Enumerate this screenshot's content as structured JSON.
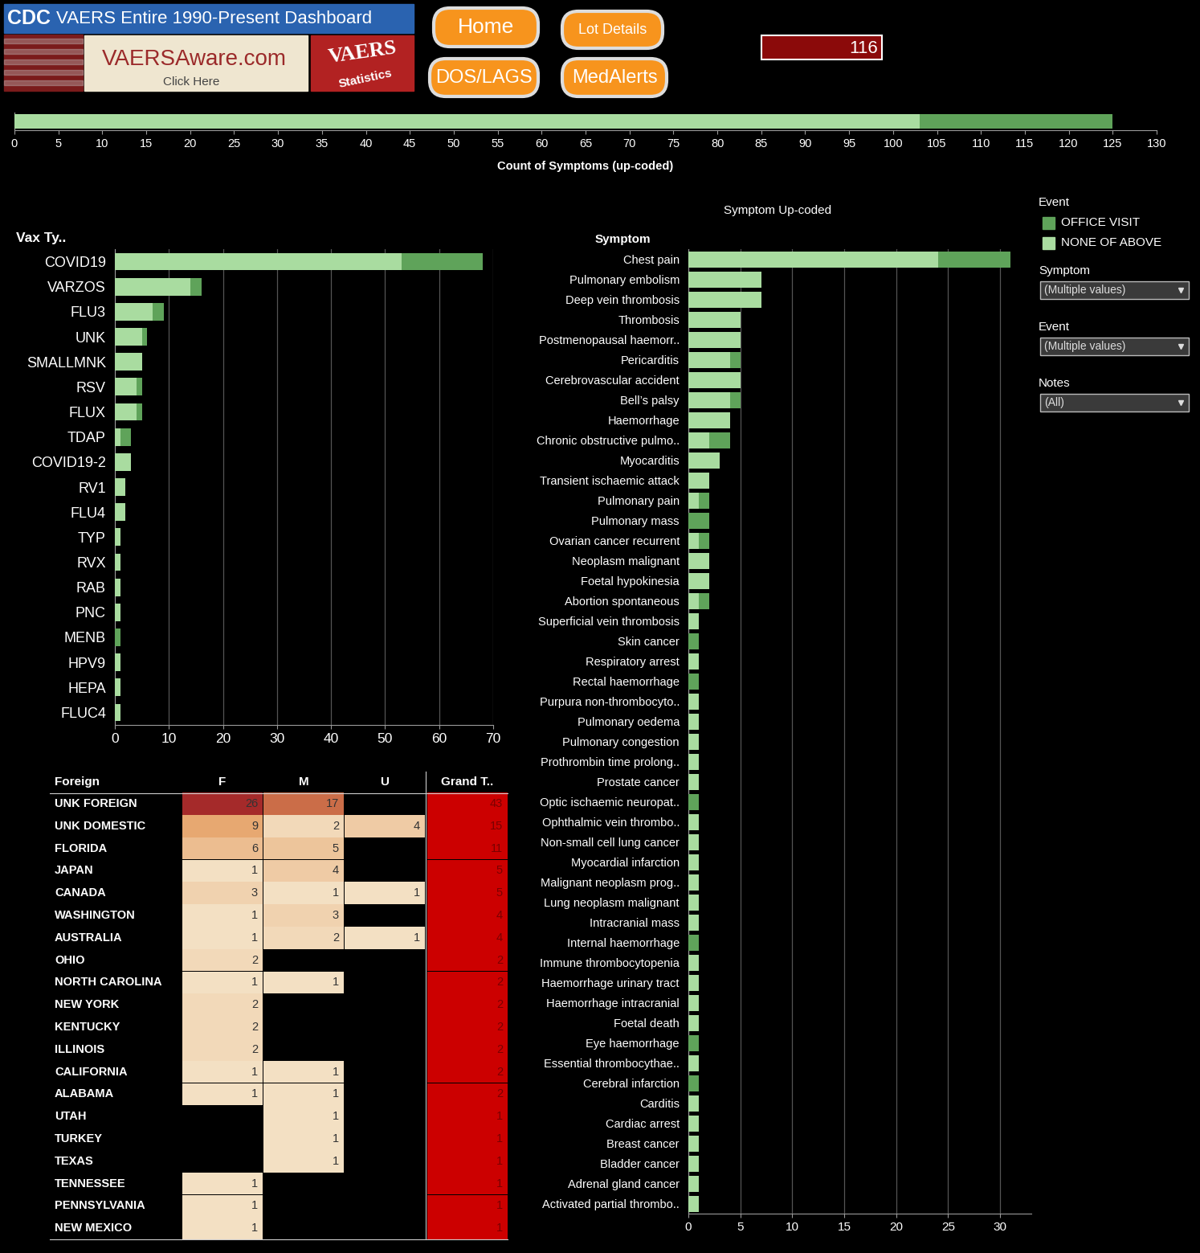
{
  "header": {
    "agency": "CDC",
    "title": "VAERS Entire 1990-Present Dashboard",
    "banner": "VAERSAware.com",
    "banner_link": "Click Here",
    "badge": "VAERS",
    "badge_sub": "Statistics",
    "buttons": [
      "Home",
      "Lot Details",
      "DOS/LAGS",
      "MedAlerts"
    ],
    "count": 116
  },
  "chart_data": [
    {
      "type": "bar",
      "orientation": "horizontal",
      "stacked": true,
      "categories": [
        null
      ],
      "series": [
        {
          "name": "NONE OF ABOVE",
          "color": "#a9dca0",
          "values": [
            103
          ]
        },
        {
          "name": "OFFICE VISIT",
          "color": "#5fa35a",
          "values": [
            22
          ]
        }
      ],
      "x_label": "Count of Symptoms (up-coded)",
      "xlim": [
        0,
        130
      ],
      "xticks": [
        0,
        5,
        10,
        15,
        20,
        25,
        30,
        35,
        40,
        45,
        50,
        55,
        60,
        65,
        70,
        75,
        80,
        85,
        90,
        95,
        100,
        105,
        110,
        115,
        120,
        125,
        130
      ],
      "grid": false
    },
    {
      "type": "bar",
      "orientation": "horizontal",
      "stacked": true,
      "y_label": "Vax Ty..",
      "categories": [
        "COVID19",
        "VARZOS",
        "FLU3",
        "UNK",
        "SMALLMNK",
        "RSV",
        "FLUX",
        "TDAP",
        "COVID19-2",
        "RV1",
        "FLU4",
        "TYP",
        "RVX",
        "RAB",
        "PNC",
        "MENB",
        "HPV9",
        "HEPA",
        "FLUC4"
      ],
      "series": [
        {
          "name": "NONE OF ABOVE",
          "color": "#a9dca0",
          "values": [
            53,
            14,
            7,
            5,
            5,
            4,
            4,
            1,
            3,
            2,
            2,
            1,
            1,
            1,
            1,
            0,
            1,
            1,
            1
          ]
        },
        {
          "name": "OFFICE VISIT",
          "color": "#5fa35a",
          "values": [
            15,
            2,
            2,
            1,
            0,
            1,
            1,
            2,
            0,
            0,
            0,
            0,
            0,
            0,
            0,
            1,
            0,
            0,
            0
          ]
        }
      ],
      "xlim": [
        0,
        70
      ],
      "xticks": [
        0,
        10,
        20,
        30,
        40,
        50,
        60,
        70
      ],
      "grid": true
    },
    {
      "type": "bar",
      "orientation": "horizontal",
      "stacked": true,
      "title": "Symptom Up-coded",
      "y_label": "Symptom",
      "legend_title": "Event",
      "categories": [
        "Chest pain",
        "Pulmonary embolism",
        "Deep vein thrombosis",
        "Thrombosis",
        "Postmenopausal haemorr..",
        "Pericarditis",
        "Cerebrovascular accident",
        "Bell’s palsy",
        "Haemorrhage",
        "Chronic obstructive pulmo..",
        "Myocarditis",
        "Transient ischaemic attack",
        "Pulmonary pain",
        "Pulmonary mass",
        "Ovarian cancer recurrent",
        "Neoplasm malignant",
        "Foetal hypokinesia",
        "Abortion spontaneous",
        "Superficial vein thrombosis",
        "Skin cancer",
        "Respiratory arrest",
        "Rectal haemorrhage",
        "Purpura non-thrombocyto..",
        "Pulmonary oedema",
        "Pulmonary congestion",
        "Prothrombin time prolong..",
        "Prostate cancer",
        "Optic ischaemic neuropat..",
        "Ophthalmic vein thrombo..",
        "Non-small cell lung cancer",
        "Myocardial infarction",
        "Malignant neoplasm prog..",
        "Lung neoplasm malignant",
        "Intracranial mass",
        "Internal haemorrhage",
        "Immune thrombocytopenia",
        "Haemorrhage urinary tract",
        "Haemorrhage intracranial",
        "Foetal death",
        "Eye haemorrhage",
        "Essential thrombocythae..",
        "Cerebral infarction",
        "Carditis",
        "Cardiac arrest",
        "Breast cancer",
        "Bladder cancer",
        "Adrenal gland cancer",
        "Activated partial thrombo.."
      ],
      "series": [
        {
          "name": "NONE OF ABOVE",
          "color": "#a9dca0",
          "values": [
            24,
            7,
            7,
            5,
            5,
            4,
            5,
            4,
            4,
            2,
            3,
            2,
            1,
            0,
            1,
            2,
            2,
            1,
            1,
            0,
            1,
            0,
            1,
            1,
            1,
            1,
            1,
            0,
            1,
            1,
            1,
            1,
            1,
            1,
            0,
            1,
            1,
            1,
            1,
            0,
            1,
            0,
            1,
            1,
            1,
            1,
            1,
            1
          ]
        },
        {
          "name": "OFFICE VISIT",
          "color": "#5fa35a",
          "values": [
            7,
            0,
            0,
            0,
            0,
            1,
            0,
            1,
            0,
            2,
            0,
            0,
            1,
            2,
            1,
            0,
            0,
            1,
            0,
            1,
            0,
            1,
            0,
            0,
            0,
            0,
            0,
            1,
            0,
            0,
            0,
            0,
            0,
            0,
            1,
            0,
            0,
            0,
            0,
            1,
            0,
            1,
            0,
            0,
            0,
            0,
            0,
            0
          ]
        }
      ],
      "xlim": [
        0,
        33
      ],
      "xticks": [
        0,
        5,
        10,
        15,
        20,
        25,
        30
      ],
      "grid": true
    }
  ],
  "filters": [
    {
      "label": "Symptom",
      "value": "(Multiple values)"
    },
    {
      "label": "Event",
      "value": "(Multiple values)"
    },
    {
      "label": "Notes",
      "value": "(All)"
    }
  ],
  "table": {
    "header": [
      "Foreign",
      "F",
      "M",
      "U",
      "Grand T.."
    ],
    "rows": [
      [
        "UNK FOREIGN",
        26,
        17,
        null,
        43
      ],
      [
        "UNK DOMESTIC",
        9,
        2,
        4,
        15
      ],
      [
        "FLORIDA",
        6,
        5,
        null,
        11
      ],
      [
        "JAPAN",
        1,
        4,
        null,
        5
      ],
      [
        "CANADA",
        3,
        1,
        1,
        5
      ],
      [
        "WASHINGTON",
        1,
        3,
        null,
        4
      ],
      [
        "AUSTRALIA",
        1,
        2,
        1,
        4
      ],
      [
        "OHIO",
        2,
        null,
        null,
        2
      ],
      [
        "NORTH CAROLINA",
        1,
        1,
        null,
        2
      ],
      [
        "NEW YORK",
        2,
        null,
        null,
        2
      ],
      [
        "KENTUCKY",
        2,
        null,
        null,
        2
      ],
      [
        "ILLINOIS",
        2,
        null,
        null,
        2
      ],
      [
        "CALIFORNIA",
        1,
        1,
        null,
        2
      ],
      [
        "ALABAMA",
        1,
        1,
        null,
        2
      ],
      [
        "UTAH",
        null,
        1,
        null,
        1
      ],
      [
        "TURKEY",
        null,
        1,
        null,
        1
      ],
      [
        "TEXAS",
        null,
        1,
        null,
        1
      ],
      [
        "TENNESSEE",
        1,
        null,
        null,
        1
      ],
      [
        "PENNSYLVANIA",
        1,
        null,
        null,
        1
      ],
      [
        "NEW MEXICO",
        1,
        null,
        null,
        1
      ]
    ]
  }
}
